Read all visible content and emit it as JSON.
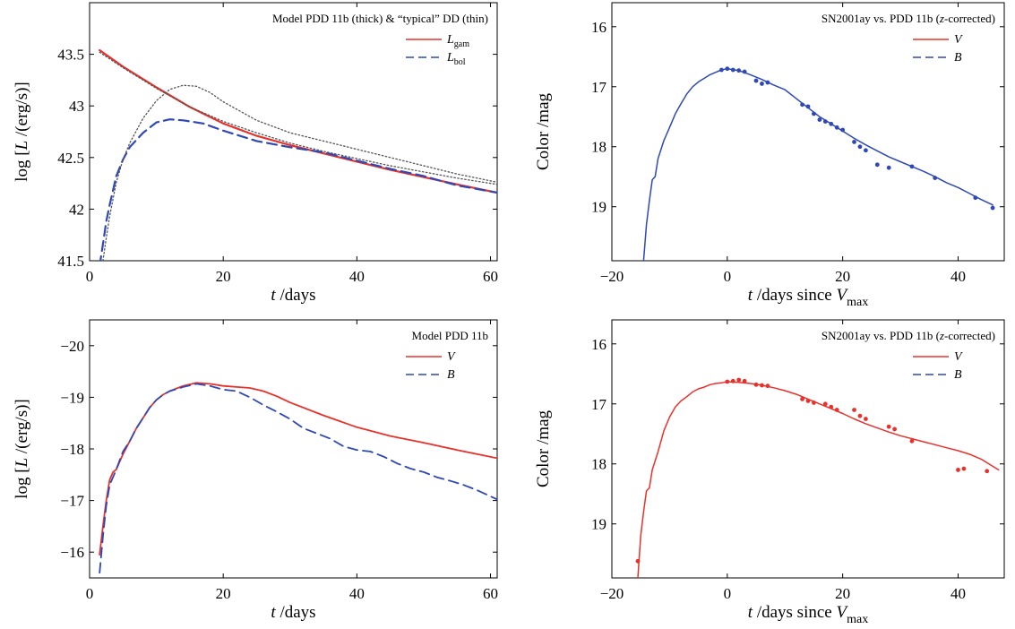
{
  "chart_data": [
    {
      "type": "line",
      "title": "Model PDD 11b (thick) & “typical” DD (thin)",
      "xlabel": "t /days",
      "ylabel": "log [L /(erg/s)]",
      "xlim": [
        0,
        61
      ],
      "ylim": [
        41.5,
        44.0
      ],
      "xticks": [
        0,
        20,
        40,
        60
      ],
      "yticks": [
        41.5,
        42,
        42.5,
        43,
        43.5
      ],
      "ytick_labels": [
        "41.5",
        "42",
        "42.5",
        "43",
        "43.5"
      ],
      "legend_position": "top-right",
      "legend": [
        {
          "label": "L",
          "sub": "gam",
          "style": "solid",
          "color": "#e8312a"
        },
        {
          "label": "L",
          "sub": "bol",
          "style": "dashed",
          "color": "#2f48b6"
        }
      ],
      "series": [
        {
          "name": "Lgam",
          "color": "#e8312a",
          "style": "solid",
          "width": 2.2,
          "x": [
            1.5,
            5,
            10,
            15,
            20,
            25,
            30,
            35,
            40,
            45,
            50,
            55,
            61
          ],
          "y": [
            43.54,
            43.38,
            43.18,
            42.99,
            42.83,
            42.71,
            42.62,
            42.54,
            42.46,
            42.38,
            42.31,
            42.24,
            42.16
          ]
        },
        {
          "name": "Lbol",
          "color": "#2f48b6",
          "style": "dashed",
          "width": 2.2,
          "x": [
            1.5,
            2,
            2.5,
            3,
            4,
            5,
            6,
            8,
            10,
            12,
            14,
            17,
            20,
            25,
            30,
            35,
            40,
            45,
            50,
            55,
            61
          ],
          "y": [
            41.45,
            41.66,
            41.88,
            42.04,
            42.32,
            42.48,
            42.6,
            42.74,
            42.84,
            42.87,
            42.86,
            42.83,
            42.76,
            42.66,
            42.6,
            42.55,
            42.47,
            42.39,
            42.32,
            42.23,
            42.16
          ]
        },
        {
          "name": "typical DD Lgam",
          "color": "#555555",
          "style": "dotted",
          "width": 1.3,
          "x": [
            1.5,
            5,
            10,
            15,
            20,
            25,
            30,
            35,
            40,
            45,
            50,
            55,
            61
          ],
          "y": [
            43.52,
            43.37,
            43.17,
            42.99,
            42.85,
            42.74,
            42.64,
            42.56,
            42.49,
            42.42,
            42.36,
            42.3,
            42.24
          ]
        },
        {
          "name": "typical DD Lbol",
          "color": "#555555",
          "style": "dotted",
          "width": 1.3,
          "x": [
            2,
            2.5,
            3,
            4,
            5,
            6,
            8,
            10,
            12,
            14,
            16,
            18,
            20,
            25,
            30,
            35,
            40,
            45,
            50,
            55,
            61
          ],
          "y": [
            41.5,
            41.72,
            41.93,
            42.26,
            42.48,
            42.64,
            42.88,
            43.05,
            43.16,
            43.2,
            43.19,
            43.13,
            43.04,
            42.86,
            42.74,
            42.66,
            42.58,
            42.5,
            42.42,
            42.34,
            42.26
          ]
        }
      ]
    },
    {
      "type": "line",
      "title": "SN2001ay vs. PDD 11b (z-corrected)",
      "xlabel": "t /days since Vmax",
      "ylabel": "Color /mag",
      "xlim": [
        -20,
        48
      ],
      "ylim": [
        19.9,
        15.6
      ],
      "xticks": [
        -20,
        0,
        20,
        40
      ],
      "yticks": [
        16,
        17,
        18,
        19
      ],
      "ytick_labels": [
        "16",
        "17",
        "18",
        "19"
      ],
      "legend_position": "top-right",
      "legend": [
        {
          "label": "V",
          "style": "solid",
          "color": "#e8312a"
        },
        {
          "label": "B",
          "style": "dashed",
          "color": "#2f48b6"
        }
      ],
      "series": [
        {
          "name": "B model",
          "color": "#2f48b6",
          "style": "solid",
          "width": 1.5,
          "x": [
            -14.5,
            -14,
            -13.5,
            -13,
            -12.5,
            -12,
            -11,
            -10,
            -9,
            -8,
            -7,
            -6,
            -5,
            -4,
            -3,
            -2,
            -1,
            0,
            2,
            4,
            6,
            8,
            10,
            12,
            14,
            16,
            18,
            20,
            22,
            24,
            26,
            28,
            30,
            32,
            34,
            36,
            38,
            40,
            42,
            44,
            46
          ],
          "y": [
            19.9,
            19.3,
            18.9,
            18.55,
            18.5,
            18.2,
            17.9,
            17.68,
            17.45,
            17.28,
            17.12,
            17.0,
            16.92,
            16.86,
            16.8,
            16.76,
            16.72,
            16.7,
            16.73,
            16.8,
            16.88,
            16.97,
            17.05,
            17.2,
            17.35,
            17.5,
            17.62,
            17.74,
            17.86,
            17.97,
            18.07,
            18.17,
            18.25,
            18.33,
            18.41,
            18.5,
            18.6,
            18.68,
            18.78,
            18.88,
            18.97
          ]
        },
        {
          "name": "B observed",
          "type": "scatter",
          "color": "#2f48b6",
          "x": [
            -1,
            0,
            1,
            2,
            3,
            5,
            6,
            7,
            13,
            14,
            15,
            16,
            17,
            18,
            19,
            20,
            22,
            23,
            24,
            26,
            28,
            32,
            36,
            43,
            46
          ],
          "y": [
            16.72,
            16.7,
            16.72,
            16.73,
            16.75,
            16.9,
            16.95,
            16.93,
            17.3,
            17.33,
            17.45,
            17.55,
            17.58,
            17.62,
            17.68,
            17.72,
            17.92,
            18.0,
            18.06,
            18.3,
            18.35,
            18.33,
            18.52,
            18.85,
            19.02
          ]
        }
      ]
    },
    {
      "type": "line",
      "title": "Model PDD 11b",
      "xlabel": "t /days",
      "ylabel": "log [L /(erg/s)]",
      "xlim": [
        0,
        61
      ],
      "ylim": [
        -15.5,
        -20.5
      ],
      "xticks": [
        0,
        20,
        40,
        60
      ],
      "yticks": [
        -16,
        -17,
        -18,
        -19,
        -20
      ],
      "ytick_labels": [
        "−16",
        "−17",
        "−18",
        "−19",
        "−20"
      ],
      "legend_position": "top-right",
      "legend": [
        {
          "label": "V",
          "style": "solid",
          "color": "#e8312a"
        },
        {
          "label": "B",
          "style": "dashed",
          "color": "#2f48b6"
        }
      ],
      "series": [
        {
          "name": "V",
          "color": "#e8312a",
          "style": "solid",
          "width": 1.8,
          "x": [
            1.5,
            2,
            2.5,
            3,
            3.5,
            4,
            5,
            6,
            7,
            8,
            9,
            10,
            11,
            12,
            14,
            16,
            18,
            20,
            22,
            24,
            26,
            28,
            30,
            35,
            40,
            45,
            50,
            55,
            61
          ],
          "y": [
            -15.95,
            -16.5,
            -17.0,
            -17.4,
            -17.55,
            -17.6,
            -17.9,
            -18.15,
            -18.4,
            -18.6,
            -18.8,
            -18.95,
            -19.05,
            -19.12,
            -19.22,
            -19.28,
            -19.26,
            -19.22,
            -19.2,
            -19.18,
            -19.12,
            -19.02,
            -18.9,
            -18.65,
            -18.42,
            -18.25,
            -18.12,
            -17.98,
            -17.82
          ]
        },
        {
          "name": "B",
          "color": "#2f48b6",
          "style": "dashed",
          "width": 1.8,
          "x": [
            1.5,
            2,
            2.5,
            3,
            4,
            5,
            6,
            7,
            8,
            9,
            10,
            11,
            12,
            14,
            16,
            18,
            20,
            22,
            24,
            26,
            28,
            30,
            32,
            34,
            36,
            38,
            40,
            42,
            44,
            46,
            48,
            50,
            52,
            54,
            56,
            58,
            61
          ],
          "y": [
            -15.6,
            -16.3,
            -16.9,
            -17.3,
            -17.6,
            -17.95,
            -18.15,
            -18.4,
            -18.6,
            -18.8,
            -18.95,
            -19.05,
            -19.12,
            -19.2,
            -19.26,
            -19.22,
            -19.15,
            -19.12,
            -19.0,
            -18.85,
            -18.72,
            -18.58,
            -18.4,
            -18.3,
            -18.2,
            -18.05,
            -17.98,
            -17.95,
            -17.85,
            -17.72,
            -17.62,
            -17.55,
            -17.45,
            -17.38,
            -17.3,
            -17.2,
            -17.02
          ]
        }
      ]
    },
    {
      "type": "line",
      "title": "SN2001ay vs. PDD 11b (z-corrected)",
      "xlabel": "t /days since Vmax",
      "ylabel": "Color /mag",
      "xlim": [
        -20,
        48
      ],
      "ylim": [
        19.9,
        15.6
      ],
      "xticks": [
        -20,
        0,
        20,
        40
      ],
      "yticks": [
        16,
        17,
        18,
        19
      ],
      "ytick_labels": [
        "16",
        "17",
        "18",
        "19"
      ],
      "legend_position": "top-right",
      "legend": [
        {
          "label": "V",
          "style": "solid",
          "color": "#e8312a"
        },
        {
          "label": "B",
          "style": "dashed",
          "color": "#2f48b6"
        }
      ],
      "series": [
        {
          "name": "V model",
          "color": "#e8312a",
          "style": "solid",
          "width": 1.5,
          "x": [
            -15.5,
            -15,
            -14.5,
            -14,
            -13.5,
            -13,
            -12,
            -11,
            -10,
            -9,
            -8,
            -7,
            -6,
            -5,
            -4,
            -3,
            -2,
            -1,
            0,
            2,
            4,
            6,
            8,
            10,
            12,
            14,
            16,
            18,
            20,
            22,
            24,
            26,
            28,
            30,
            32,
            34,
            36,
            38,
            40,
            42,
            44,
            47
          ],
          "y": [
            19.9,
            19.2,
            18.8,
            18.45,
            18.4,
            18.1,
            17.8,
            17.45,
            17.22,
            17.05,
            16.95,
            16.88,
            16.8,
            16.75,
            16.72,
            16.68,
            16.66,
            16.65,
            16.63,
            16.64,
            16.66,
            16.69,
            16.73,
            16.78,
            16.84,
            16.92,
            17.0,
            17.08,
            17.16,
            17.25,
            17.33,
            17.4,
            17.47,
            17.53,
            17.58,
            17.63,
            17.68,
            17.73,
            17.78,
            17.84,
            17.92,
            18.1
          ]
        },
        {
          "name": "V observed",
          "type": "scatter",
          "color": "#e8312a",
          "x": [
            -15.5,
            0,
            1,
            2,
            3,
            5,
            6,
            7,
            13,
            14,
            15,
            17,
            18,
            19,
            22,
            23,
            24,
            28,
            29,
            32,
            40,
            41,
            45
          ],
          "y": [
            19.62,
            16.63,
            16.62,
            16.6,
            16.62,
            16.68,
            16.69,
            16.7,
            16.92,
            16.95,
            16.98,
            17.0,
            17.05,
            17.1,
            17.1,
            17.2,
            17.25,
            17.38,
            17.42,
            17.62,
            18.1,
            18.08,
            18.12
          ]
        }
      ]
    }
  ]
}
